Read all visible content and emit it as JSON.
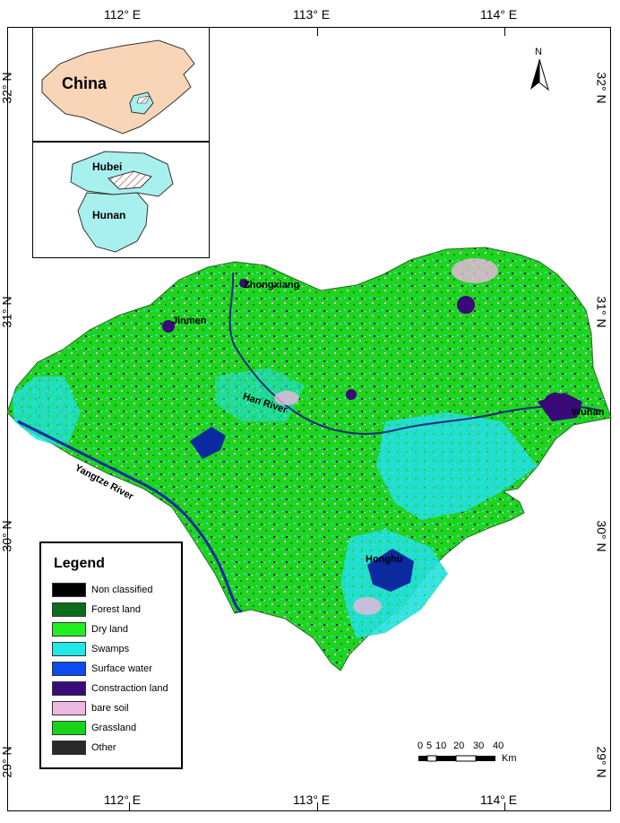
{
  "longitude_labels": [
    "112° E",
    "113° E",
    "114° E"
  ],
  "latitude_labels": [
    "32° N",
    "31° N",
    "30° N",
    "29° N"
  ],
  "inset_labels": {
    "china": "China",
    "hubei": "Hubei",
    "hunan": "Hunan"
  },
  "north_arrow_label": "N",
  "map_labels": {
    "zhongxiang": "Zhongxiang",
    "jinmen": "Jinmen",
    "han_river": "Han River",
    "wuhan": "Wuhan",
    "yangtze_river": "Yangtze River",
    "honghu": "Honghu"
  },
  "legend": {
    "title": "Legend",
    "items": [
      {
        "label": "Non classified",
        "color": "#000000"
      },
      {
        "label": "Forest land",
        "color": "#0a6e1a"
      },
      {
        "label": "Dry land",
        "color": "#22ee22"
      },
      {
        "label": "Swamps",
        "color": "#20e8e8"
      },
      {
        "label": "Surface water",
        "color": "#0b4bf0"
      },
      {
        "label": "Constraction land",
        "color": "#3a0a78"
      },
      {
        "label": "bare soil",
        "color": "#ecb8e0"
      },
      {
        "label": "Grassland",
        "color": "#18d418"
      },
      {
        "label": "Other",
        "color": "#2a2a2a"
      }
    ]
  },
  "scale_bar": {
    "ticks": [
      "0",
      "5",
      "10",
      "20",
      "30",
      "40"
    ],
    "unit": "Km"
  }
}
